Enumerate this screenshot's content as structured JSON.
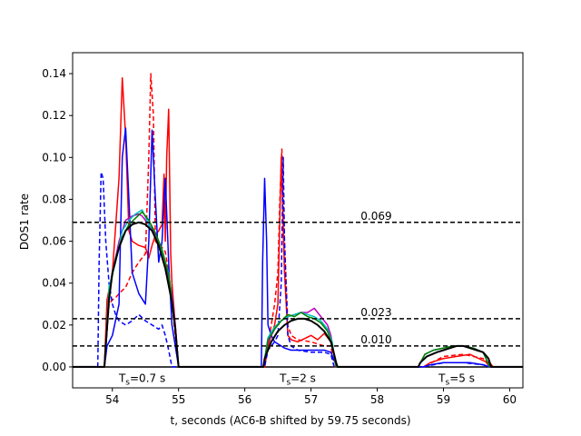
{
  "chart_data": {
    "type": "line",
    "xlabel": "t, seconds (AC6-B shifted by 59.75 seconds)",
    "ylabel": "DOS1 rate",
    "xlim": [
      53.4,
      60.2
    ],
    "ylim": [
      -0.01,
      0.15
    ],
    "x_ticks": [
      54,
      55,
      56,
      57,
      58,
      59,
      60
    ],
    "y_ticks": [
      0.0,
      0.02,
      0.04,
      0.06,
      0.08,
      0.1,
      0.12,
      0.14
    ],
    "x_tick_labels": [
      "54",
      "55",
      "56",
      "57",
      "58",
      "59",
      "60"
    ],
    "y_tick_labels": [
      "0.00",
      "0.02",
      "0.04",
      "0.06",
      "0.08",
      "0.10",
      "0.12",
      "0.14"
    ],
    "grid": false,
    "hlines": [
      {
        "y": 0.069,
        "label": "0.069",
        "label_x": 57.75
      },
      {
        "y": 0.023,
        "label": "0.023",
        "label_x": 57.75
      },
      {
        "y": 0.01,
        "label": "0.010",
        "label_x": 57.75
      }
    ],
    "annotations": [
      {
        "text_main": "T",
        "text_sub": "s",
        "text_rest": "=0.7 s",
        "x": 54.45,
        "y": -0.005
      },
      {
        "text_main": "T",
        "text_sub": "s",
        "text_rest": "=2 s",
        "x": 56.8,
        "y": -0.005
      },
      {
        "text_main": "T",
        "text_sub": "s",
        "text_rest": "=5 s",
        "x": 59.2,
        "y": -0.005
      }
    ],
    "series": [
      {
        "color": "#ff0000",
        "dash": false,
        "width": 1.5,
        "x": [
          53.4,
          53.88,
          53.92,
          54.0,
          54.1,
          54.15,
          54.2,
          54.25,
          54.3,
          54.4,
          54.5,
          54.55,
          54.6,
          54.65,
          54.7,
          54.75,
          54.78,
          54.8,
          54.82,
          54.85,
          54.88,
          54.9,
          54.95,
          55.0,
          55.05,
          56.3,
          56.35,
          56.4,
          56.45,
          56.5,
          56.55,
          56.6,
          56.65,
          56.7,
          56.8,
          57.0,
          57.1,
          57.2,
          57.3,
          57.35,
          57.4,
          58.7,
          58.8,
          59.0,
          59.2,
          59.4,
          59.6,
          59.7,
          59.75,
          60.2
        ],
        "y": [
          0,
          0,
          0.032,
          0.045,
          0.09,
          0.138,
          0.11,
          0.065,
          0.06,
          0.058,
          0.057,
          0.052,
          0.058,
          0.063,
          0.065,
          0.068,
          0.092,
          0.06,
          0.1,
          0.123,
          0.055,
          0.04,
          0.02,
          0,
          0,
          0,
          0.01,
          0.015,
          0.02,
          0.03,
          0.1,
          0.045,
          0.015,
          0.013,
          0.012,
          0.015,
          0.013,
          0.016,
          0.012,
          0.005,
          0,
          0,
          0.002,
          0.004,
          0.005,
          0.006,
          0.003,
          0.002,
          0,
          0
        ]
      },
      {
        "color": "#ff0000",
        "dash": true,
        "width": 1.5,
        "x": [
          53.88,
          53.95,
          54.0,
          54.05,
          54.1,
          54.2,
          54.3,
          54.4,
          54.5,
          54.55,
          54.58,
          54.62,
          54.65,
          54.7,
          54.75,
          54.8,
          54.85,
          54.9,
          54.95,
          55.0,
          56.3,
          56.35,
          56.4,
          56.45,
          56.5,
          56.53,
          56.56,
          56.6,
          56.65,
          56.7,
          56.8,
          57.0,
          57.2,
          57.3,
          57.35,
          58.7,
          59.0,
          59.3,
          59.6,
          59.7
        ],
        "y": [
          0,
          0.03,
          0.032,
          0.033,
          0.035,
          0.038,
          0.045,
          0.05,
          0.054,
          0.1,
          0.14,
          0.12,
          0.06,
          0.058,
          0.057,
          0.055,
          0.045,
          0.03,
          0.015,
          0,
          0,
          0.01,
          0.02,
          0.03,
          0.045,
          0.08,
          0.104,
          0.06,
          0.02,
          0.015,
          0.013,
          0.012,
          0.01,
          0.01,
          0,
          0,
          0.005,
          0.006,
          0.004,
          0
        ]
      },
      {
        "color": "#0000ff",
        "dash": false,
        "width": 1.5,
        "x": [
          53.4,
          53.88,
          53.92,
          54.0,
          54.1,
          54.15,
          54.2,
          54.25,
          54.3,
          54.4,
          54.5,
          54.55,
          54.6,
          54.65,
          54.7,
          54.75,
          54.8,
          54.85,
          54.9,
          54.95,
          55.0,
          56.25,
          56.27,
          56.3,
          56.33,
          56.35,
          56.4,
          56.45,
          56.5,
          56.55,
          56.6,
          56.7,
          56.8,
          57.0,
          57.2,
          57.3,
          57.35,
          57.4,
          58.7,
          58.8,
          59.0,
          59.2,
          59.4,
          59.6,
          59.7,
          60.2
        ],
        "y": [
          0,
          0,
          0.01,
          0.015,
          0.03,
          0.1,
          0.114,
          0.08,
          0.045,
          0.035,
          0.03,
          0.06,
          0.113,
          0.08,
          0.05,
          0.06,
          0.09,
          0.05,
          0.02,
          0.01,
          0,
          0,
          0.05,
          0.09,
          0.06,
          0.02,
          0.015,
          0.012,
          0.011,
          0.01,
          0.009,
          0.008,
          0.008,
          0.008,
          0.008,
          0.007,
          0.003,
          0,
          0,
          0.001,
          0.002,
          0.002,
          0.002,
          0.001,
          0,
          0
        ]
      },
      {
        "color": "#0000ff",
        "dash": true,
        "width": 1.5,
        "x": [
          53.78,
          53.8,
          53.83,
          53.86,
          53.9,
          53.95,
          54.0,
          54.05,
          54.1,
          54.2,
          54.3,
          54.4,
          54.5,
          54.6,
          54.7,
          54.75,
          54.8,
          54.85,
          54.9,
          56.3,
          56.35,
          56.4,
          56.45,
          56.5,
          56.55,
          56.58,
          56.6,
          56.65,
          56.7,
          56.8,
          57.0,
          57.2,
          57.3,
          57.35,
          58.7,
          59.0,
          59.3,
          59.6,
          59.7
        ],
        "y": [
          0,
          0.05,
          0.093,
          0.09,
          0.06,
          0.04,
          0.03,
          0.025,
          0.022,
          0.02,
          0.022,
          0.025,
          0.022,
          0.02,
          0.018,
          0.02,
          0.015,
          0.008,
          0,
          0,
          0.008,
          0.01,
          0.012,
          0.015,
          0.04,
          0.1,
          0.06,
          0.015,
          0.01,
          0.008,
          0.007,
          0.007,
          0.006,
          0,
          0,
          0.002,
          0.002,
          0.001,
          0
        ]
      },
      {
        "color": "#bf00bf",
        "dash": false,
        "width": 1.5,
        "x": [
          53.88,
          53.95,
          54.0,
          54.1,
          54.2,
          54.3,
          54.4,
          54.45,
          54.5,
          54.6,
          54.7,
          54.8,
          54.9,
          54.95,
          55.0,
          56.28,
          56.35,
          56.45,
          56.55,
          56.65,
          56.75,
          56.85,
          56.95,
          57.05,
          57.15,
          57.25,
          57.3,
          57.38,
          58.62,
          58.72,
          58.85,
          59.0,
          59.15,
          59.3,
          59.45,
          59.6,
          59.7
        ],
        "y": [
          0,
          0.032,
          0.045,
          0.06,
          0.07,
          0.072,
          0.073,
          0.072,
          0.07,
          0.066,
          0.06,
          0.05,
          0.035,
          0.02,
          0,
          0,
          0.012,
          0.018,
          0.022,
          0.024,
          0.025,
          0.026,
          0.026,
          0.028,
          0.024,
          0.02,
          0.015,
          0,
          0,
          0.006,
          0.008,
          0.009,
          0.01,
          0.01,
          0.009,
          0.007,
          0
        ]
      },
      {
        "color": "#00bfbf",
        "dash": false,
        "width": 1.5,
        "x": [
          53.88,
          53.95,
          54.05,
          54.15,
          54.25,
          54.35,
          54.45,
          54.55,
          54.65,
          54.75,
          54.85,
          54.93,
          55.0,
          56.28,
          56.35,
          56.45,
          56.55,
          56.65,
          56.75,
          56.85,
          56.95,
          57.05,
          57.15,
          57.25,
          57.32,
          57.38,
          58.62,
          58.72,
          58.85,
          59.0,
          59.15,
          59.3,
          59.45,
          59.6,
          59.7
        ],
        "y": [
          0,
          0.038,
          0.05,
          0.065,
          0.07,
          0.073,
          0.075,
          0.068,
          0.062,
          0.055,
          0.045,
          0.025,
          0,
          0,
          0.014,
          0.019,
          0.022,
          0.024,
          0.025,
          0.026,
          0.025,
          0.024,
          0.022,
          0.018,
          0.012,
          0,
          0,
          0.006,
          0.008,
          0.009,
          0.01,
          0.01,
          0.009,
          0.007,
          0
        ]
      },
      {
        "color": "#008000",
        "dash": false,
        "width": 1.5,
        "x": [
          53.88,
          53.95,
          54.05,
          54.15,
          54.25,
          54.35,
          54.45,
          54.55,
          54.65,
          54.75,
          54.85,
          54.93,
          55.0,
          56.28,
          56.35,
          56.45,
          56.55,
          56.65,
          56.75,
          56.85,
          56.95,
          57.05,
          57.15,
          57.25,
          57.32,
          57.38,
          58.62,
          58.72,
          58.85,
          59.0,
          59.15,
          59.3,
          59.45,
          59.6,
          59.7
        ],
        "y": [
          0,
          0.035,
          0.052,
          0.062,
          0.068,
          0.071,
          0.074,
          0.07,
          0.064,
          0.056,
          0.044,
          0.025,
          0,
          0,
          0.013,
          0.018,
          0.022,
          0.025,
          0.024,
          0.026,
          0.024,
          0.023,
          0.021,
          0.017,
          0.011,
          0,
          0,
          0.006,
          0.008,
          0.009,
          0.01,
          0.01,
          0.009,
          0.007,
          0
        ]
      },
      {
        "color": "#000000",
        "dash": false,
        "width": 2.0,
        "x": [
          53.4,
          53.88,
          53.9,
          53.95,
          54.0,
          54.1,
          54.2,
          54.3,
          54.4,
          54.5,
          54.6,
          54.7,
          54.8,
          54.9,
          54.95,
          55.0,
          55.05,
          56.28,
          56.3,
          56.4,
          56.5,
          56.6,
          56.7,
          56.8,
          56.9,
          57.0,
          57.1,
          57.2,
          57.3,
          57.35,
          57.38,
          57.4,
          58.62,
          58.65,
          58.75,
          58.9,
          59.0,
          59.1,
          59.2,
          59.3,
          59.4,
          59.5,
          59.6,
          59.68,
          59.72,
          60.2
        ],
        "y": [
          0,
          0,
          0.01,
          0.032,
          0.045,
          0.057,
          0.065,
          0.068,
          0.069,
          0.068,
          0.065,
          0.058,
          0.047,
          0.031,
          0.018,
          0,
          0,
          0,
          0.004,
          0.012,
          0.017,
          0.02,
          0.022,
          0.023,
          0.023,
          0.022,
          0.02,
          0.017,
          0.012,
          0.006,
          0.002,
          0,
          0,
          0.002,
          0.005,
          0.007,
          0.008,
          0.009,
          0.01,
          0.01,
          0.009,
          0.008,
          0.007,
          0.004,
          0,
          0
        ]
      }
    ]
  }
}
